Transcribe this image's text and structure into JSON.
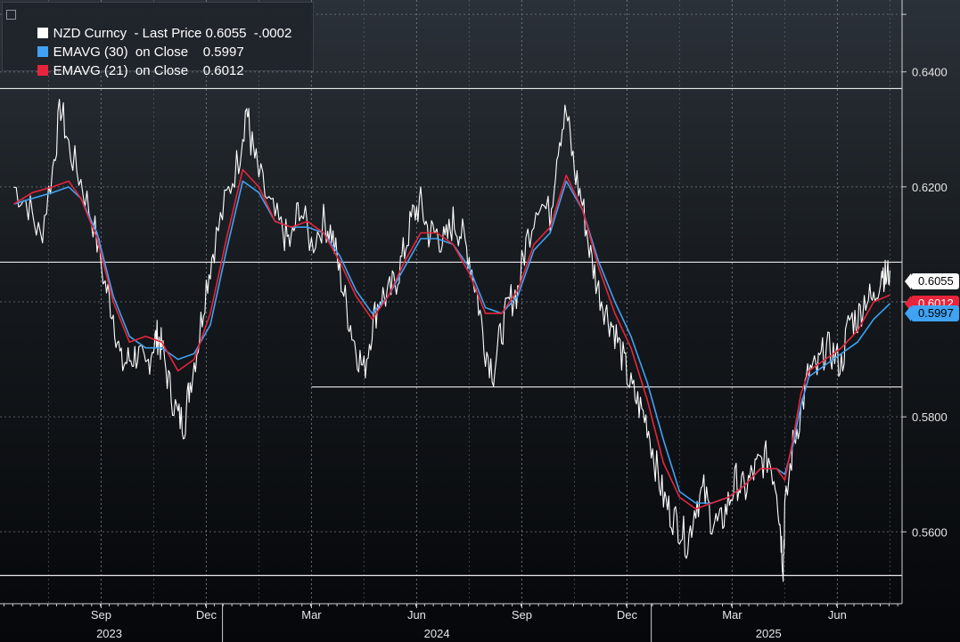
{
  "legend": {
    "rows": [
      {
        "label": "NZD Curncy  - Last Price",
        "value": "0.6055",
        "change": "-.0002",
        "color": "#ffffff"
      },
      {
        "label": "EMAVG (30)  on Close",
        "value": "0.5997",
        "color": "#3fa2f2"
      },
      {
        "label": "EMAVG (21)  on Close",
        "value": "0.6012",
        "color": "#e8243c"
      }
    ]
  },
  "price_tags": {
    "last": "0.6055",
    "ema21": "0.6012",
    "ema30": "0.5997"
  },
  "chart_data": {
    "type": "line",
    "series": [
      {
        "name": "NZD Curncy - Last Price",
        "color": "#ffffff",
        "values": [
          [
            1.7,
            0.62
          ],
          [
            3.5,
            0.617
          ],
          [
            5.0,
            0.611
          ],
          [
            6.5,
            0.623
          ],
          [
            7.5,
            0.634
          ],
          [
            8.5,
            0.627
          ],
          [
            10.0,
            0.621
          ],
          [
            11.5,
            0.614
          ],
          [
            13.0,
            0.603
          ],
          [
            14.0,
            0.598
          ],
          [
            15.0,
            0.589
          ],
          [
            16.0,
            0.59
          ],
          [
            17.0,
            0.591
          ],
          [
            18.0,
            0.588
          ],
          [
            19.0,
            0.593
          ],
          [
            19.5,
            0.594
          ],
          [
            20.0,
            0.592
          ],
          [
            21.0,
            0.585
          ],
          [
            22.0,
            0.58
          ],
          [
            22.8,
            0.579
          ],
          [
            23.5,
            0.586
          ],
          [
            24.5,
            0.593
          ],
          [
            25.5,
            0.603
          ],
          [
            26.5,
            0.61
          ],
          [
            28.0,
            0.618
          ],
          [
            29.5,
            0.625
          ],
          [
            30.5,
            0.634
          ],
          [
            31.0,
            0.628
          ],
          [
            32.0,
            0.622
          ],
          [
            33.5,
            0.616
          ],
          [
            35.0,
            0.612
          ],
          [
            36.0,
            0.61
          ],
          [
            37.0,
            0.617
          ],
          [
            38.5,
            0.61
          ],
          [
            40.0,
            0.614
          ],
          [
            41.0,
            0.612
          ],
          [
            42.0,
            0.605
          ],
          [
            43.0,
            0.598
          ],
          [
            44.0,
            0.592
          ],
          [
            45.0,
            0.588
          ],
          [
            46.0,
            0.596
          ],
          [
            47.0,
            0.601
          ],
          [
            48.0,
            0.601
          ],
          [
            49.0,
            0.604
          ],
          [
            50.0,
            0.609
          ],
          [
            51.0,
            0.615
          ],
          [
            52.0,
            0.617
          ],
          [
            53.0,
            0.612
          ],
          [
            54.0,
            0.612
          ],
          [
            55.0,
            0.61
          ],
          [
            56.0,
            0.614
          ],
          [
            57.0,
            0.612
          ],
          [
            58.0,
            0.608
          ],
          [
            59.0,
            0.601
          ],
          [
            60.0,
            0.592
          ],
          [
            61.0,
            0.588
          ],
          [
            62.0,
            0.595
          ],
          [
            63.0,
            0.6
          ],
          [
            64.0,
            0.602
          ],
          [
            65.0,
            0.61
          ],
          [
            66.5,
            0.618
          ],
          [
            68.0,
            0.615
          ],
          [
            69.0,
            0.628
          ],
          [
            70.0,
            0.633
          ],
          [
            71.0,
            0.623
          ],
          [
            72.0,
            0.617
          ],
          [
            73.0,
            0.608
          ],
          [
            74.0,
            0.602
          ],
          [
            75.0,
            0.598
          ],
          [
            76.0,
            0.595
          ],
          [
            77.0,
            0.59
          ],
          [
            78.0,
            0.585
          ],
          [
            79.0,
            0.582
          ],
          [
            80.0,
            0.579
          ],
          [
            81.0,
            0.572
          ],
          [
            82.0,
            0.566
          ],
          [
            83.0,
            0.563
          ],
          [
            84.0,
            0.561
          ],
          [
            85.0,
            0.558
          ],
          [
            86.0,
            0.565
          ],
          [
            87.0,
            0.567
          ],
          [
            88.0,
            0.562
          ],
          [
            89.0,
            0.561
          ],
          [
            90.0,
            0.565
          ],
          [
            91.0,
            0.569
          ],
          [
            92.0,
            0.567
          ],
          [
            93.0,
            0.57
          ],
          [
            94.0,
            0.572
          ],
          [
            95.0,
            0.573
          ],
          [
            96.0,
            0.568
          ],
          [
            96.5,
            0.56
          ],
          [
            96.8,
            0.554
          ],
          [
            97.0,
            0.563
          ],
          [
            98.0,
            0.575
          ],
          [
            99.0,
            0.581
          ],
          [
            100.0,
            0.588
          ],
          [
            101.0,
            0.588
          ],
          [
            102.0,
            0.592
          ],
          [
            103.0,
            0.591
          ],
          [
            104.0,
            0.589
          ],
          [
            105.0,
            0.597
          ],
          [
            106.0,
            0.597
          ],
          [
            107.0,
            0.601
          ],
          [
            108.0,
            0.6
          ],
          [
            109.0,
            0.606
          ],
          [
            109.5,
            0.604
          ],
          [
            110.0,
            0.6055
          ]
        ]
      },
      {
        "name": "EMAVG (30) on Close",
        "color": "#3fa2f2",
        "values": [
          [
            1.7,
            0.617
          ],
          [
            4.0,
            0.618
          ],
          [
            6.5,
            0.619
          ],
          [
            8.5,
            0.62
          ],
          [
            10.0,
            0.618
          ],
          [
            12.0,
            0.612
          ],
          [
            14.0,
            0.601
          ],
          [
            16.0,
            0.594
          ],
          [
            18.0,
            0.592
          ],
          [
            20.0,
            0.592
          ],
          [
            22.0,
            0.59
          ],
          [
            24.0,
            0.591
          ],
          [
            26.0,
            0.596
          ],
          [
            28.0,
            0.609
          ],
          [
            30.0,
            0.621
          ],
          [
            32.0,
            0.619
          ],
          [
            34.0,
            0.614
          ],
          [
            36.0,
            0.613
          ],
          [
            38.0,
            0.613
          ],
          [
            40.0,
            0.612
          ],
          [
            42.0,
            0.608
          ],
          [
            44.0,
            0.602
          ],
          [
            46.0,
            0.598
          ],
          [
            48.0,
            0.601
          ],
          [
            50.0,
            0.606
          ],
          [
            52.0,
            0.611
          ],
          [
            54.0,
            0.611
          ],
          [
            56.0,
            0.61
          ],
          [
            58.0,
            0.606
          ],
          [
            60.0,
            0.599
          ],
          [
            62.0,
            0.598
          ],
          [
            64.0,
            0.601
          ],
          [
            66.0,
            0.609
          ],
          [
            68.0,
            0.612
          ],
          [
            70.0,
            0.621
          ],
          [
            72.0,
            0.616
          ],
          [
            74.0,
            0.607
          ],
          [
            76.0,
            0.6
          ],
          [
            78.0,
            0.594
          ],
          [
            80.0,
            0.586
          ],
          [
            82.0,
            0.576
          ],
          [
            84.0,
            0.567
          ],
          [
            86.0,
            0.565
          ],
          [
            88.0,
            0.565
          ],
          [
            90.0,
            0.566
          ],
          [
            92.0,
            0.568
          ],
          [
            94.0,
            0.571
          ],
          [
            96.0,
            0.571
          ],
          [
            97.0,
            0.57
          ],
          [
            98.0,
            0.575
          ],
          [
            99.0,
            0.582
          ],
          [
            100.0,
            0.587
          ],
          [
            101.0,
            0.588
          ],
          [
            102.0,
            0.589
          ],
          [
            104.0,
            0.591
          ],
          [
            106.0,
            0.593
          ],
          [
            108.0,
            0.597
          ],
          [
            110.0,
            0.5997
          ]
        ]
      },
      {
        "name": "EMAVG (21) on Close",
        "color": "#e8243c",
        "values": [
          [
            1.7,
            0.617
          ],
          [
            4.0,
            0.619
          ],
          [
            6.5,
            0.62
          ],
          [
            8.5,
            0.621
          ],
          [
            10.0,
            0.618
          ],
          [
            12.0,
            0.611
          ],
          [
            14.0,
            0.6
          ],
          [
            16.0,
            0.593
          ],
          [
            18.0,
            0.594
          ],
          [
            20.0,
            0.593
          ],
          [
            22.0,
            0.588
          ],
          [
            24.0,
            0.59
          ],
          [
            26.0,
            0.598
          ],
          [
            28.0,
            0.611
          ],
          [
            30.0,
            0.623
          ],
          [
            32.0,
            0.62
          ],
          [
            34.0,
            0.614
          ],
          [
            36.0,
            0.613
          ],
          [
            38.0,
            0.614
          ],
          [
            40.0,
            0.612
          ],
          [
            42.0,
            0.607
          ],
          [
            44.0,
            0.601
          ],
          [
            46.0,
            0.597
          ],
          [
            48.0,
            0.601
          ],
          [
            50.0,
            0.607
          ],
          [
            52.0,
            0.612
          ],
          [
            54.0,
            0.612
          ],
          [
            56.0,
            0.61
          ],
          [
            58.0,
            0.605
          ],
          [
            60.0,
            0.598
          ],
          [
            62.0,
            0.598
          ],
          [
            64.0,
            0.602
          ],
          [
            66.0,
            0.61
          ],
          [
            68.0,
            0.613
          ],
          [
            70.0,
            0.622
          ],
          [
            72.0,
            0.616
          ],
          [
            74.0,
            0.606
          ],
          [
            76.0,
            0.598
          ],
          [
            78.0,
            0.592
          ],
          [
            80.0,
            0.583
          ],
          [
            82.0,
            0.572
          ],
          [
            84.0,
            0.566
          ],
          [
            86.0,
            0.564
          ],
          [
            88.0,
            0.565
          ],
          [
            90.0,
            0.566
          ],
          [
            92.0,
            0.568
          ],
          [
            94.0,
            0.571
          ],
          [
            96.0,
            0.571
          ],
          [
            97.0,
            0.569
          ],
          [
            98.0,
            0.576
          ],
          [
            99.0,
            0.584
          ],
          [
            100.0,
            0.588
          ],
          [
            101.0,
            0.589
          ],
          [
            102.0,
            0.59
          ],
          [
            104.0,
            0.592
          ],
          [
            106.0,
            0.595
          ],
          [
            108.0,
            0.6
          ],
          [
            110.0,
            0.6012
          ]
        ]
      }
    ],
    "x_axis": {
      "unit": "months since Jul 2023",
      "range": [
        0,
        111.5
      ],
      "month_ticks": [
        {
          "label": "Sep",
          "x": 12.5
        },
        {
          "label": "Dec",
          "x": 25.5
        },
        {
          "label": "Mar",
          "x": 38.5
        },
        {
          "label": "Jun",
          "x": 51.5
        },
        {
          "label": "Sep",
          "x": 64.5
        },
        {
          "label": "Dec",
          "x": 77.5
        },
        {
          "label": "Mar",
          "x": 90.5
        },
        {
          "label": "Jun",
          "x": 103.5
        }
      ],
      "year_labels": [
        {
          "label": "2023",
          "x": 13.5
        },
        {
          "label": "2024",
          "x": 54.0
        },
        {
          "label": "2025",
          "x": 95.0
        }
      ],
      "year_dividers": [
        27.5,
        80.5
      ]
    },
    "y_axis": {
      "range": [
        0.5475,
        0.6525
      ],
      "ticks": [
        0.56,
        0.58,
        0.6,
        0.62,
        0.64
      ],
      "tick_labels": [
        "0.5600",
        "0.5800",
        "0.6000",
        "0.6200",
        "0.6400"
      ]
    },
    "horizontal_lines": [
      {
        "y": 0.6371,
        "x_start": 0,
        "x_end": 111.5
      },
      {
        "y": 0.6069,
        "x_start": 0,
        "x_end": 111.5
      },
      {
        "y": 0.5852,
        "x_start": 38.5,
        "x_end": 111.5
      },
      {
        "y": 0.5524,
        "x_start": 0,
        "x_end": 111.5
      }
    ],
    "grid": true,
    "legend_position": "top-left"
  }
}
